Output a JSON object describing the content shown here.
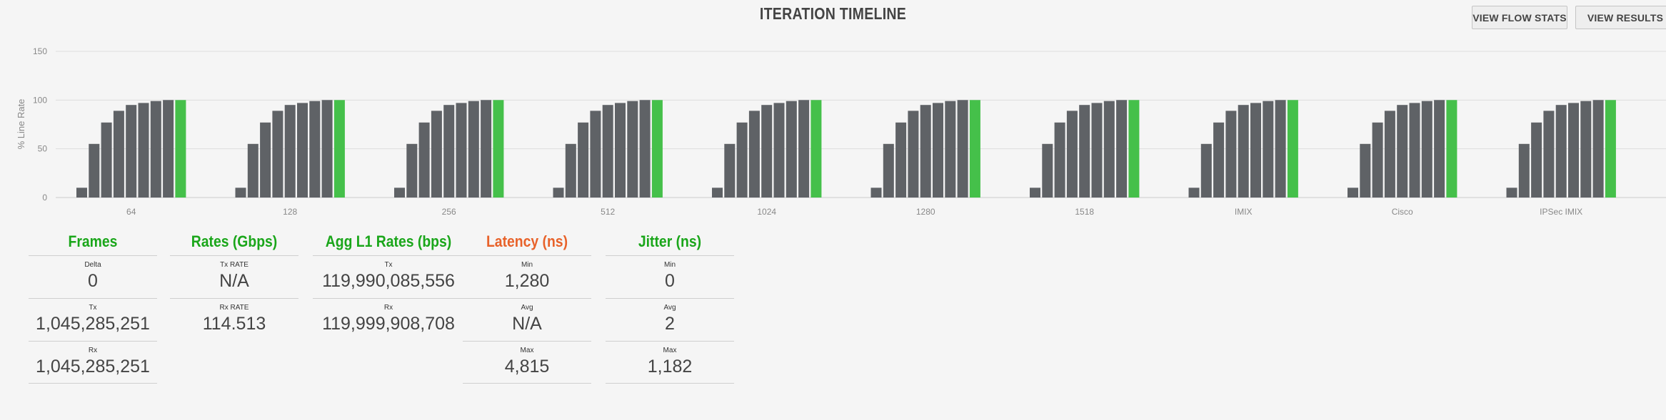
{
  "title": "ITERATION TIMELINE",
  "buttons": {
    "flow_stats": "VIEW FLOW STATS",
    "results": "VIEW RESULTS"
  },
  "colors": {
    "bar": "#5f6266",
    "highlight": "#45c04a",
    "grid": "#dddddd",
    "axis_text": "#888888",
    "heading_green": "#1aa61a",
    "heading_orange": "#e8622a"
  },
  "chart_data": {
    "type": "bar",
    "ylabel": "% Line Rate",
    "xlabel": "",
    "ylim": [
      0,
      150
    ],
    "yticks": [
      0,
      50,
      100,
      150
    ],
    "grid": true,
    "categories": [
      "64",
      "128",
      "256",
      "512",
      "1024",
      "1280",
      "1518",
      "IMIX",
      "Cisco",
      "IPSec IMIX"
    ],
    "iterations": [
      10,
      55,
      77,
      89,
      95,
      97,
      99,
      100,
      100
    ],
    "highlight_last_iteration": true,
    "series_values": [
      [
        10,
        55,
        77,
        89,
        95,
        97,
        99,
        100,
        100
      ],
      [
        10,
        55,
        77,
        89,
        95,
        97,
        99,
        100,
        100
      ],
      [
        10,
        55,
        77,
        89,
        95,
        97,
        99,
        100,
        100
      ],
      [
        10,
        55,
        77,
        89,
        95,
        97,
        99,
        100,
        100
      ],
      [
        10,
        55,
        77,
        89,
        95,
        97,
        99,
        100,
        100
      ],
      [
        10,
        55,
        77,
        89,
        95,
        97,
        99,
        100,
        100
      ],
      [
        10,
        55,
        77,
        89,
        95,
        97,
        99,
        100,
        100
      ],
      [
        10,
        55,
        77,
        89,
        95,
        97,
        99,
        100,
        100
      ],
      [
        10,
        55,
        77,
        89,
        95,
        97,
        99,
        100,
        100
      ],
      [
        10,
        55,
        77,
        89,
        95,
        97,
        99,
        100,
        100
      ]
    ]
  },
  "stats": {
    "frames": {
      "title": "Frames",
      "items": [
        {
          "label": "Delta",
          "value": "0"
        },
        {
          "label": "Tx",
          "value": "1,045,285,251"
        },
        {
          "label": "Rx",
          "value": "1,045,285,251"
        }
      ]
    },
    "rates": {
      "title": "Rates (Gbps)",
      "items": [
        {
          "label": "Tx RATE",
          "value": "N/A"
        },
        {
          "label": "Rx RATE",
          "value": "114.513"
        }
      ]
    },
    "agg": {
      "title": "Agg L1 Rates (bps)",
      "items": [
        {
          "label": "Tx",
          "value": "119,990,085,556"
        },
        {
          "label": "Rx",
          "value": "119,999,908,708"
        }
      ]
    },
    "latency": {
      "title": "Latency (ns)",
      "items": [
        {
          "label": "Min",
          "value": "1,280"
        },
        {
          "label": "Avg",
          "value": "N/A"
        },
        {
          "label": "Max",
          "value": "4,815"
        }
      ]
    },
    "jitter": {
      "title": "Jitter (ns)",
      "items": [
        {
          "label": "Min",
          "value": "0"
        },
        {
          "label": "Avg",
          "value": "2"
        },
        {
          "label": "Max",
          "value": "1,182"
        }
      ]
    }
  }
}
